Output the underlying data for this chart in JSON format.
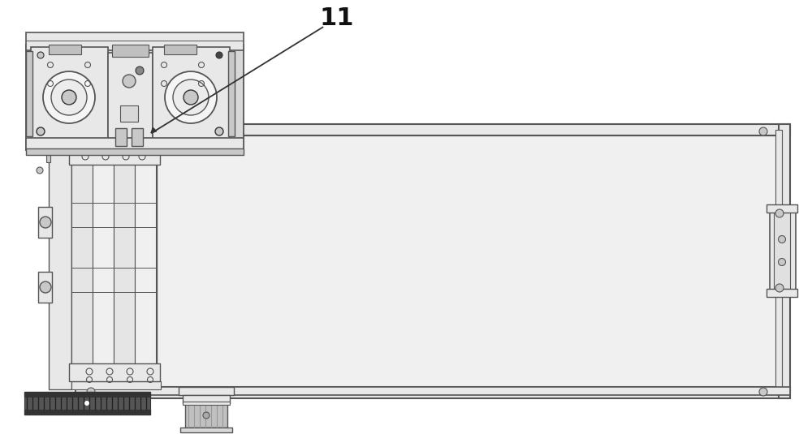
{
  "bg_color": "#ffffff",
  "lc": "#555555",
  "dc": "#333333",
  "fl": "#e8e8e8",
  "fm": "#c8c8c8",
  "fd": "#888888",
  "fw": 10.0,
  "fh": 5.35,
  "dpi": 100
}
